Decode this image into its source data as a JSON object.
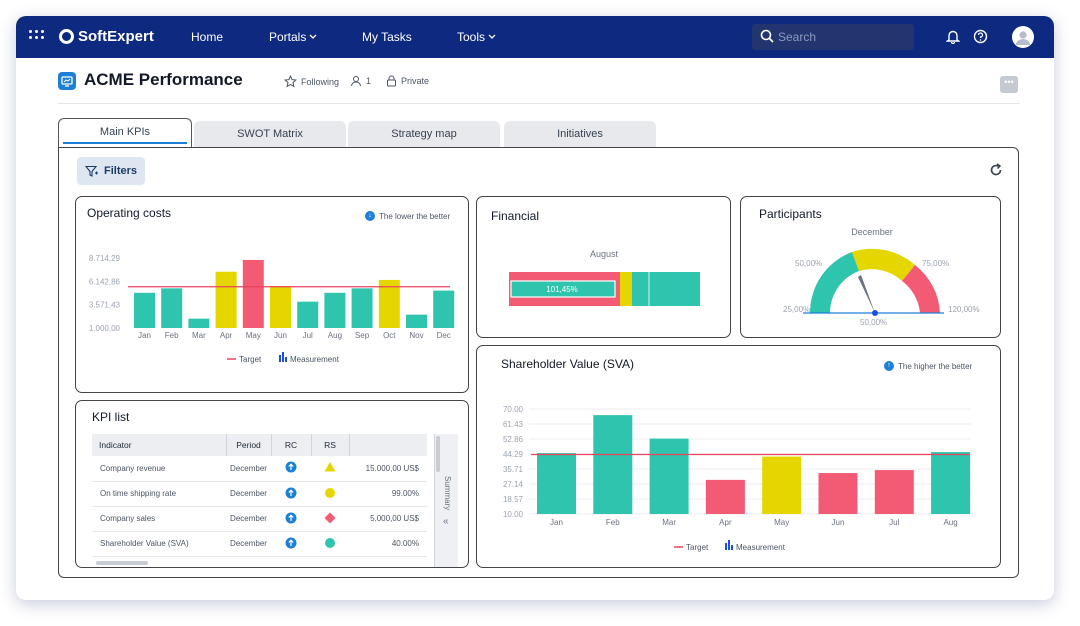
{
  "app": {
    "brand": "SoftExpert",
    "nav": [
      {
        "label": "Home",
        "dropdown": false
      },
      {
        "label": "Portals",
        "dropdown": true
      },
      {
        "label": "My Tasks",
        "dropdown": false
      },
      {
        "label": "Tools",
        "dropdown": true
      }
    ],
    "search_placeholder": "Search"
  },
  "page": {
    "title": "ACME Performance",
    "following": "Following",
    "members": "1",
    "privacy": "Private",
    "more": "•••"
  },
  "tabs": [
    {
      "label": "Main KPIs",
      "active": true
    },
    {
      "label": "SWOT Matrix",
      "active": false
    },
    {
      "label": "Strategy map",
      "active": false
    },
    {
      "label": "Initiatives",
      "active": false
    }
  ],
  "toolbar": {
    "filters_label": "Filters"
  },
  "colors": {
    "teal": "#2ec4ad",
    "yellow": "#e6d600",
    "red": "#f35b74",
    "target": "#e8435e",
    "blue": "#1d7fd6"
  },
  "operating_costs": {
    "title": "Operating costs",
    "hint": "The lower the better",
    "legend_target": "Target",
    "legend_measurement": "Measurement",
    "chart_data": {
      "type": "bar",
      "categories": [
        "Jan",
        "Feb",
        "Mar",
        "Apr",
        "May",
        "Jun",
        "Jul",
        "Aug",
        "Sep",
        "Oct",
        "Nov",
        "Dec"
      ],
      "values": [
        4880,
        5370,
        2030,
        7200,
        8500,
        5620,
        3900,
        4880,
        5370,
        6300,
        2470,
        5120
      ],
      "status": [
        "teal",
        "teal",
        "teal",
        "yellow",
        "red",
        "yellow",
        "teal",
        "teal",
        "teal",
        "yellow",
        "teal",
        "teal"
      ],
      "target": 5550,
      "yticks": [
        "8.714,29",
        "6.142,86",
        "3.571,43",
        "1.000,00"
      ],
      "ytick_values": [
        8714.29,
        6142.86,
        3571.43,
        1000
      ],
      "ylim": [
        1000,
        8714.29
      ]
    }
  },
  "financial": {
    "title": "Financial",
    "period": "August",
    "value_label": "101,45%",
    "chart_data": {
      "type": "bar",
      "value_pct": 101.45,
      "bands": [
        "red",
        "yellow",
        "teal"
      ]
    }
  },
  "participants": {
    "title": "Participants",
    "period": "December",
    "chart_data": {
      "type": "gauge",
      "labels": [
        "25,00%",
        "50,00%",
        "50,00%",
        "75,00%",
        "120,00%"
      ],
      "min_pct": 25,
      "max_pct": 120,
      "pointer_pct": 55,
      "bands": [
        "teal",
        "yellow",
        "red"
      ]
    }
  },
  "kpi_list": {
    "title": "KPI list",
    "columns": [
      "Indicator",
      "Period",
      "RC",
      "RS"
    ],
    "rows": [
      {
        "indicator": "Company revenue",
        "period": "December",
        "rs_shape": "triangle",
        "rs_color": "yellow",
        "value": "15.000,00 US$"
      },
      {
        "indicator": "On time shipping rate",
        "period": "December",
        "rs_shape": "circle",
        "rs_color": "yellow",
        "value": "99.00%"
      },
      {
        "indicator": "Company sales",
        "period": "December",
        "rs_shape": "diamond",
        "rs_color": "red",
        "value": "5.000,00 US$"
      },
      {
        "indicator": "Shareholder Value (SVA)",
        "period": "December",
        "rs_shape": "circle",
        "rs_color": "teal",
        "value": "40.00%"
      }
    ],
    "summary_label": "Summary",
    "collapse": "«"
  },
  "sva": {
    "title": "Shareholder Value (SVA)",
    "hint": "The higher the better",
    "legend_target": "Target",
    "legend_measurement": "Measurement",
    "chart_data": {
      "type": "bar",
      "categories": [
        "Jan",
        "Feb",
        "Mar",
        "Apr",
        "May",
        "Jun",
        "Jul",
        "Aug"
      ],
      "values": [
        44.8,
        66.5,
        53.1,
        29.5,
        42.8,
        33.4,
        35.1,
        45.4
      ],
      "status": [
        "teal",
        "teal",
        "teal",
        "red",
        "yellow",
        "red",
        "red",
        "teal"
      ],
      "target": 44.0,
      "yticks": [
        "70.00",
        "61.43",
        "52.86",
        "44.29",
        "35.71",
        "27.14",
        "18.57",
        "10.00"
      ],
      "ytick_values": [
        70,
        61.43,
        52.86,
        44.29,
        35.71,
        27.14,
        18.57,
        10
      ],
      "ylim": [
        10,
        70
      ]
    }
  }
}
